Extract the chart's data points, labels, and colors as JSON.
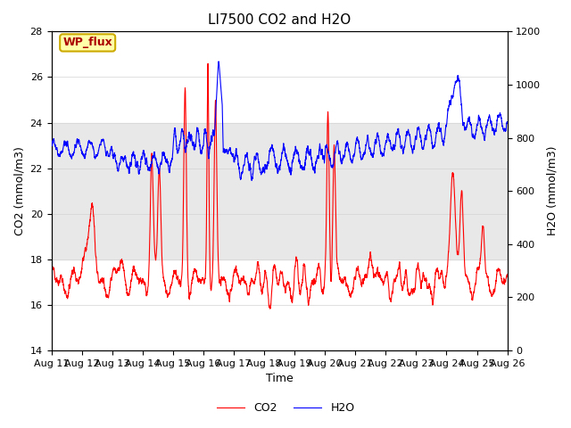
{
  "title": "LI7500 CO2 and H2O",
  "xlabel": "Time",
  "ylabel_left": "CO2 (mmol/m3)",
  "ylabel_right": "H2O (mmol/m3)",
  "ylim_left": [
    14,
    28
  ],
  "ylim_right": [
    0,
    1200
  ],
  "yticks_left": [
    14,
    16,
    18,
    20,
    22,
    24,
    26,
    28
  ],
  "yticks_right": [
    0,
    200,
    400,
    600,
    800,
    1000,
    1200
  ],
  "x_tick_days": [
    11,
    12,
    13,
    14,
    15,
    16,
    17,
    18,
    19,
    20,
    21,
    22,
    23,
    24,
    25,
    26
  ],
  "co2_color": "#FF0000",
  "h2o_color": "#0000FF",
  "legend_co2": "CO2",
  "legend_h2o": "H2O",
  "annotation_text": "WP_flux",
  "annotation_bg": "#FFFFAA",
  "annotation_border": "#CCAA00",
  "annotation_text_color": "#AA0000",
  "band_ymin": 18,
  "band_ymax": 24,
  "band_color": "#E8E8E8",
  "title_fontsize": 11,
  "axis_fontsize": 9,
  "tick_fontsize": 8,
  "legend_fontsize": 9,
  "linewidth": 0.8
}
